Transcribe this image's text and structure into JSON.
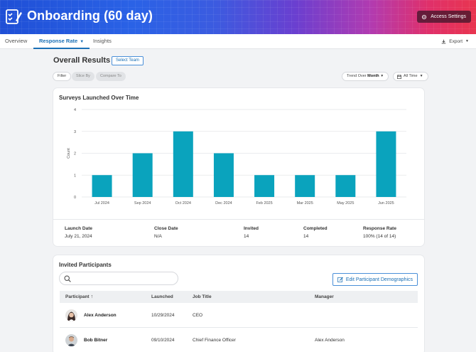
{
  "header": {
    "title": "Onboarding (60 day)",
    "access_settings_label": "Access Settings"
  },
  "nav": {
    "tabs": [
      {
        "label": "Overview",
        "active": false
      },
      {
        "label": "Response Rate",
        "active": true
      },
      {
        "label": "Insights",
        "active": false
      }
    ],
    "export_label": "Export"
  },
  "overall": {
    "title": "Overall Results",
    "select_team_label": "Select Team",
    "filters": {
      "filter_label": "Filter",
      "slice_by_label": "Slice By",
      "compare_to_label": "Compare To",
      "trend_over_label": "Trend Over",
      "trend_over_value": "Month",
      "time_range_label": "All Time"
    }
  },
  "chart_data": {
    "type": "bar",
    "title": "Surveys Launched Over Time",
    "xlabel": "",
    "ylabel": "Count",
    "categories": [
      "Jul 2024",
      "Sep 2024",
      "Oct 2024",
      "Dec 2024",
      "Feb 2025",
      "Mar 2025",
      "May 2025",
      "Jun 2025"
    ],
    "values": [
      1,
      2,
      3,
      2,
      1,
      1,
      1,
      3
    ],
    "ylim": [
      0,
      4
    ],
    "yticks": [
      0,
      1,
      2,
      3,
      4
    ],
    "grid": true,
    "bar_color": "#0aa3bd"
  },
  "summary": {
    "launch_date_label": "Launch Date",
    "launch_date_value": "July 21, 2024",
    "close_date_label": "Close Date",
    "close_date_value": "N/A",
    "invited_label": "Invited",
    "invited_value": "14",
    "completed_label": "Completed",
    "completed_value": "14",
    "response_rate_label": "Response Rate",
    "response_rate_value": "100% (14 of 14)"
  },
  "participants": {
    "title": "Invited Participants",
    "search_placeholder": "",
    "edit_demographics_label": "Edit Participant Demographics",
    "columns": [
      "Participant",
      "Launched",
      "Job Title",
      "Manager"
    ],
    "rows": [
      {
        "name": "Alex Anderson",
        "launched": "10/29/2024",
        "job_title": "CEO",
        "manager": ""
      },
      {
        "name": "Bob Bitner",
        "launched": "09/10/2024",
        "job_title": "Chief Finance Officer",
        "manager": "Alex Anderson"
      }
    ]
  },
  "colors": {
    "accent": "#1a6fb5",
    "bar": "#0aa3bd"
  }
}
